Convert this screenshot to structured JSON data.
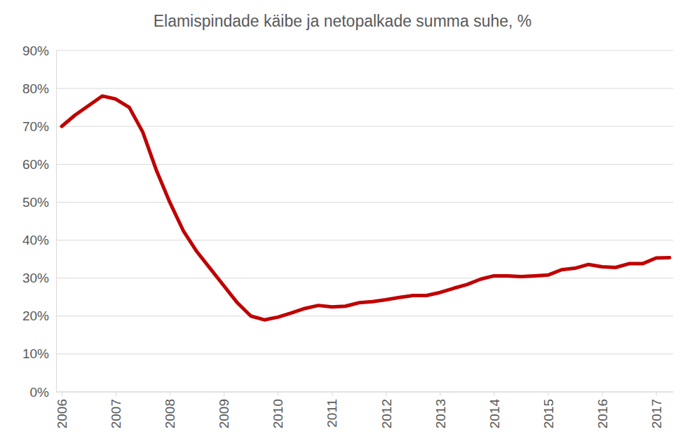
{
  "chart_data": {
    "type": "line",
    "title": "Elamispindade käibe ja netopalkade summa suhe, %",
    "categories": [
      "2006",
      null,
      null,
      null,
      "2007",
      null,
      null,
      null,
      "2008",
      null,
      null,
      null,
      "2009",
      null,
      null,
      null,
      "2010",
      null,
      null,
      null,
      "2011",
      null,
      null,
      null,
      "2012",
      null,
      null,
      null,
      "2013",
      null,
      null,
      null,
      "2014",
      null,
      null,
      null,
      "2015",
      null,
      null,
      null,
      "2016",
      null,
      null,
      null,
      "2017",
      null
    ],
    "values": [
      70,
      73,
      75.5,
      78,
      77.2,
      75,
      68.5,
      58.5,
      50,
      42.5,
      37,
      32.5,
      28,
      23.5,
      20,
      19,
      19.7,
      20.8,
      22,
      22.8,
      22.4,
      22.6,
      23.5,
      23.8,
      24.3,
      24.9,
      25.4,
      25.4,
      26.2,
      27.3,
      28.3,
      29.7,
      30.6,
      30.6,
      30.4,
      30.6,
      30.8,
      32.2,
      32.6,
      33.6,
      33,
      32.8,
      33.8,
      33.8,
      35.3,
      35.4
    ],
    "color": "#c00000",
    "ylim": [
      0,
      90
    ],
    "yticks": [
      {
        "value": 0,
        "label": "0%"
      },
      {
        "value": 10,
        "label": "10%"
      },
      {
        "value": 20,
        "label": "20%"
      },
      {
        "value": 30,
        "label": "30%"
      },
      {
        "value": 40,
        "label": "40%"
      },
      {
        "value": 50,
        "label": "50%"
      },
      {
        "value": 60,
        "label": "60%"
      },
      {
        "value": 70,
        "label": "70%"
      },
      {
        "value": 80,
        "label": "80%"
      },
      {
        "value": 90,
        "label": "90%"
      }
    ],
    "grid": true
  }
}
